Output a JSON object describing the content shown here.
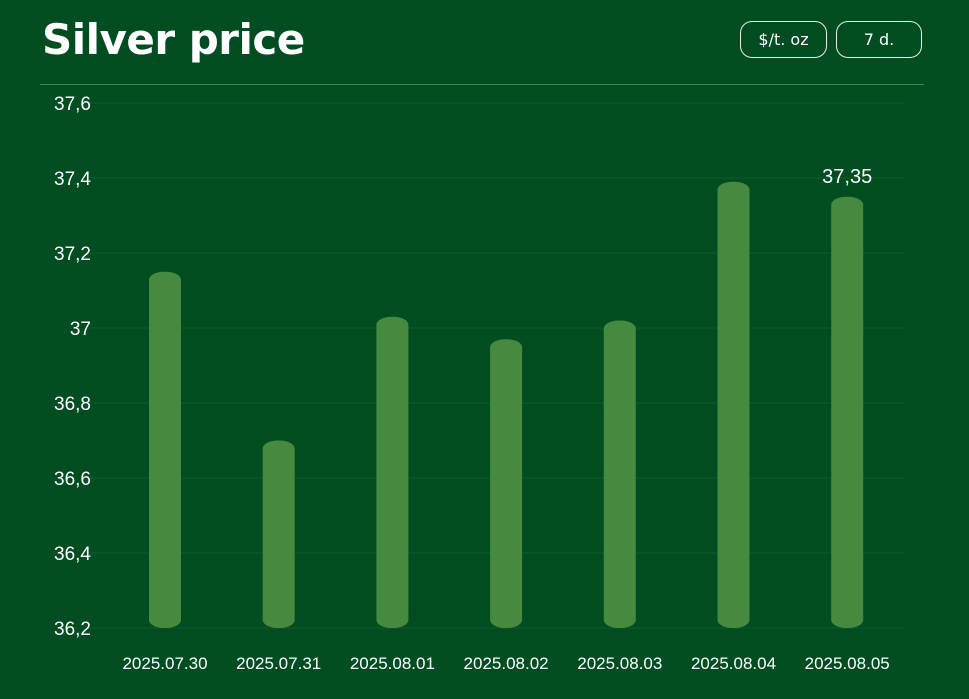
{
  "header": {
    "title": "Silver price",
    "unit_button": "$/t. oz",
    "range_button": "7 d."
  },
  "colors": {
    "background": "#004d22",
    "bar": "#458a3f",
    "gridline": "#0e5a2c",
    "divider": "#3f8a3f",
    "text": "#ffffff"
  },
  "chart_data": {
    "type": "bar",
    "categories": [
      "2025.07.30",
      "2025.07.31",
      "2025.08.01",
      "2025.08.02",
      "2025.08.03",
      "2025.08.04",
      "2025.08.05"
    ],
    "values": [
      37.15,
      36.7,
      37.03,
      36.97,
      37.02,
      37.39,
      37.35
    ],
    "ylim": [
      36.2,
      37.6
    ],
    "yticks": [
      "36,2",
      "36,4",
      "36,6",
      "36,8",
      "37",
      "37,2",
      "37,4",
      "37,6"
    ],
    "ytick_values": [
      36.2,
      36.4,
      36.6,
      36.8,
      37.0,
      37.2,
      37.4,
      37.6
    ],
    "data_labels": [
      {
        "category": "2025.08.05",
        "text": "37,35"
      }
    ],
    "grid": true,
    "legend": "none"
  }
}
